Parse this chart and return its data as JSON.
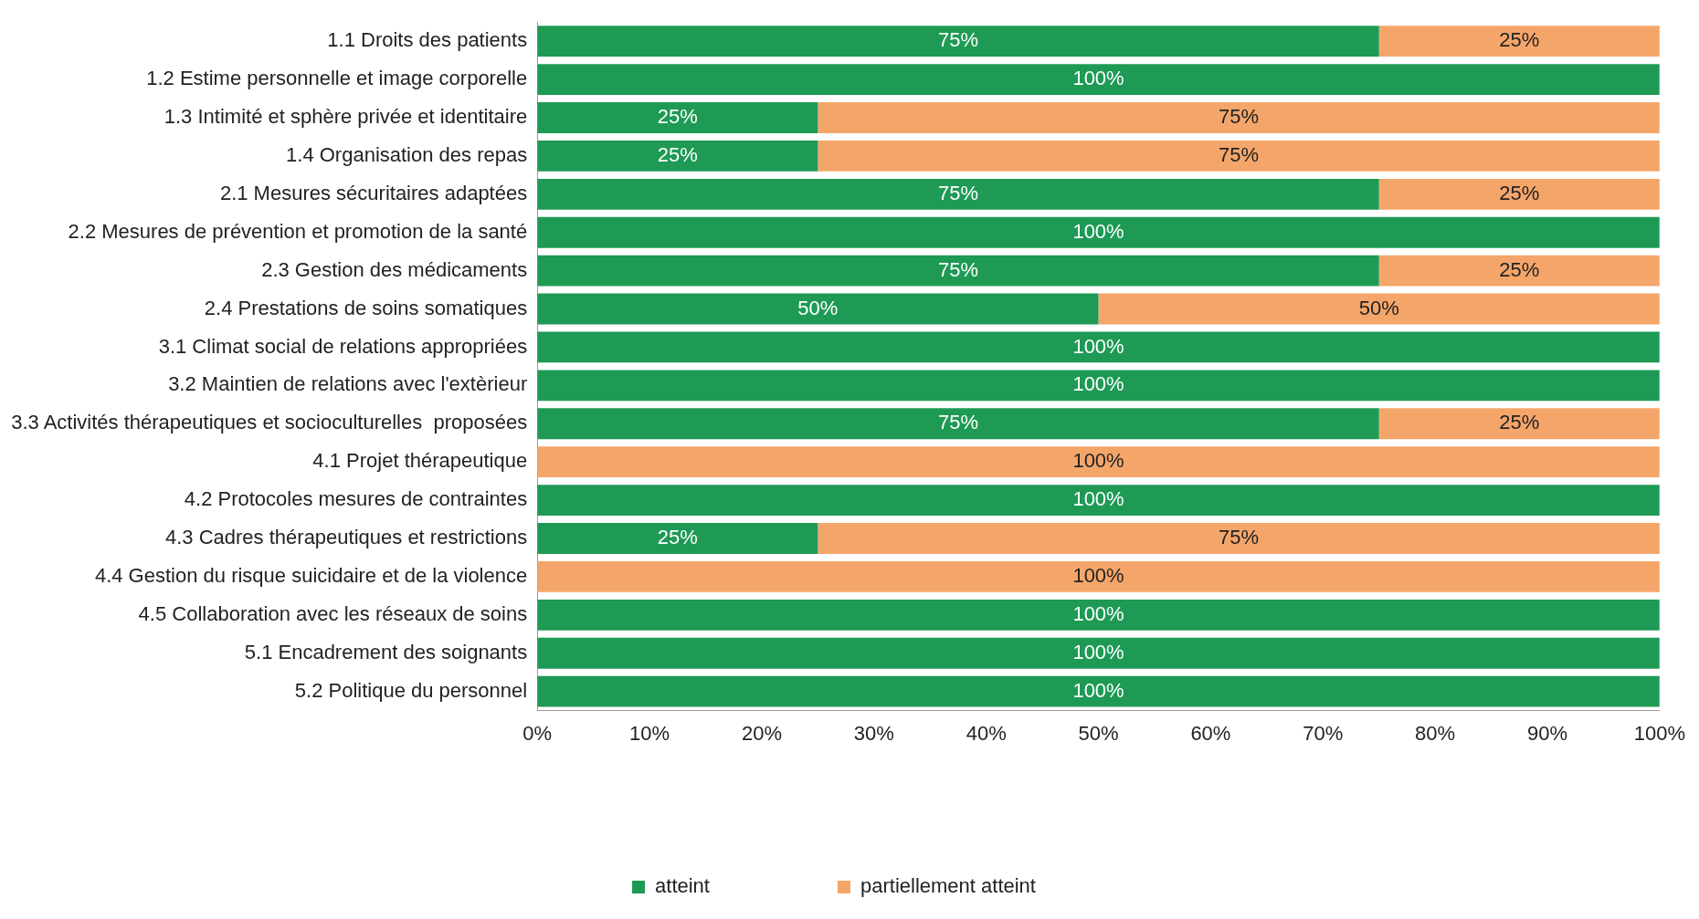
{
  "chart_data": {
    "type": "bar",
    "orientation": "horizontal",
    "stacked": true,
    "categories": [
      "1.1 Droits des patients",
      "1.2 Estime personnelle et image corporelle",
      "1.3 Intimité et sphère privée et identitaire",
      "1.4 Organisation des repas",
      "2.1 Mesures sécuritaires adaptées",
      "2.2 Mesures de prévention et promotion de la santé",
      "2.3 Gestion des médicaments",
      "2.4 Prestations de soins somatiques",
      "3.1 Climat social de relations appropriées",
      "3.2 Maintien de relations avec l'extèrieur",
      "3.3 Activités thérapeutiques et socioculturelles  proposées",
      "4.1 Projet thérapeutique",
      "4.2 Protocoles mesures de contraintes",
      "4.3 Cadres thérapeutiques et restrictions",
      "4.4 Gestion du risque suicidaire et de la violence",
      "4.5 Collaboration avec les réseaux de soins",
      "5.1 Encadrement des soignants",
      "5.2 Politique du personnel"
    ],
    "series": [
      {
        "name": "atteint",
        "color": "#1e9a55",
        "values": [
          75,
          100,
          25,
          25,
          75,
          100,
          75,
          50,
          100,
          100,
          75,
          0,
          100,
          25,
          0,
          100,
          100,
          100
        ],
        "value_labels": [
          "75%",
          "100%",
          "25%",
          "25%",
          "75%",
          "100%",
          "75%",
          "50%",
          "100%",
          "100%",
          "75%",
          null,
          "100%",
          "25%",
          null,
          "100%",
          "100%",
          "100%"
        ]
      },
      {
        "name": "partiellement atteint",
        "color": "#f4a66a",
        "values": [
          25,
          0,
          75,
          75,
          25,
          0,
          25,
          50,
          0,
          0,
          25,
          100,
          0,
          75,
          100,
          0,
          0,
          0
        ],
        "value_labels": [
          "25%",
          null,
          "75%",
          "75%",
          "25%",
          null,
          "25%",
          "50%",
          null,
          null,
          "25%",
          "100%",
          null,
          "75%",
          "100%",
          null,
          null,
          null
        ]
      }
    ],
    "xlim": [
      0,
      100
    ],
    "xticks": [
      {
        "value": 0,
        "label": "0%"
      },
      {
        "value": 10,
        "label": "10%"
      },
      {
        "value": 20,
        "label": "20%"
      },
      {
        "value": 30,
        "label": "30%"
      },
      {
        "value": 40,
        "label": "40%"
      },
      {
        "value": 50,
        "label": "50%"
      },
      {
        "value": 60,
        "label": "60%"
      },
      {
        "value": 70,
        "label": "70%"
      },
      {
        "value": 80,
        "label": "80%"
      },
      {
        "value": 90,
        "label": "90%"
      },
      {
        "value": 100,
        "label": "100%"
      }
    ],
    "grid": false,
    "legend": "bottom"
  }
}
